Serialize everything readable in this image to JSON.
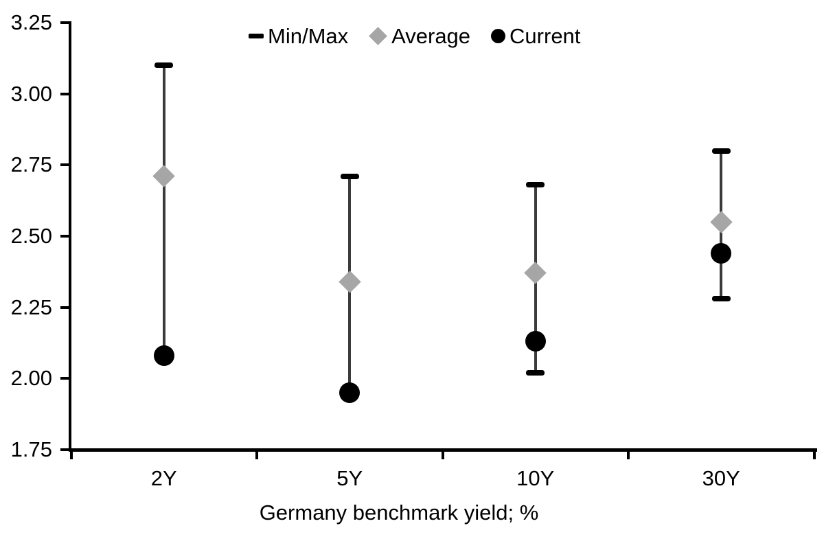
{
  "chart_data": {
    "type": "scatter",
    "subtype": "min-max-range-markers",
    "title": "",
    "xlabel": "Germany benchmark yield; %",
    "ylabel": "",
    "categories": [
      "2Y",
      "5Y",
      "10Y",
      "30Y"
    ],
    "series": [
      {
        "name": "Min/Max",
        "marker": "range-cap",
        "color": "#000000",
        "min": [
          2.08,
          1.95,
          2.02,
          2.28
        ],
        "max": [
          3.1,
          2.71,
          2.68,
          2.8
        ]
      },
      {
        "name": "Average",
        "marker": "diamond",
        "color": "#a6a6a6",
        "values": [
          2.71,
          2.34,
          2.37,
          2.55
        ]
      },
      {
        "name": "Current",
        "marker": "circle",
        "color": "#000000",
        "values": [
          2.08,
          1.95,
          2.13,
          2.44
        ]
      }
    ],
    "ylim": [
      1.75,
      3.25
    ],
    "ytick_labels": [
      "3.25",
      "3.00",
      "2.75",
      "2.50",
      "2.25",
      "2.00",
      "1.75"
    ],
    "grid": false,
    "legend_position": "top-center"
  },
  "colors": {
    "background": "#ffffff",
    "axis": "#000000",
    "text": "#000000",
    "whisker": "#3b3b3b",
    "cap": "#000000",
    "average_marker": "#a6a6a6",
    "current_marker": "#000000"
  }
}
